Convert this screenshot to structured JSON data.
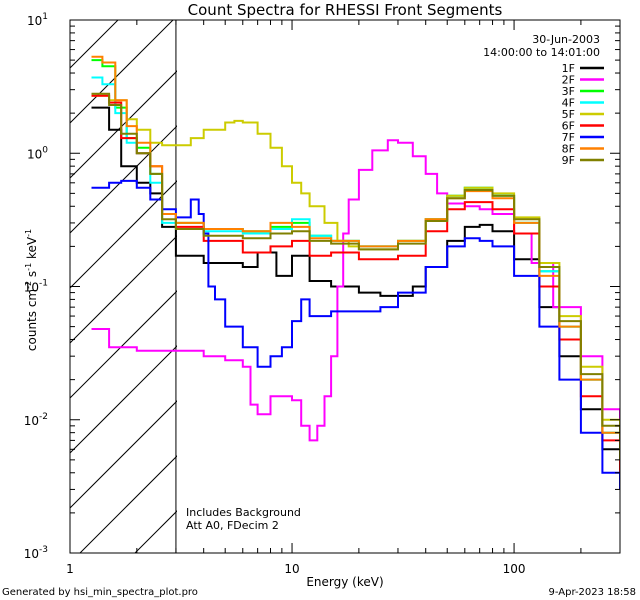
{
  "chart_data": {
    "type": "line",
    "title": "Count Spectra for RHESSI Front Segments",
    "xlabel": "Energy (keV)",
    "ylabel": "counts cm",
    "ylabel_sup1": "-2",
    "ylabel_mid": " s",
    "ylabel_sup2": "-1",
    "ylabel_end": " keV",
    "ylabel_sup3": "-1",
    "xscale": "log",
    "yscale": "log",
    "xlim": [
      1,
      300
    ],
    "ylim": [
      0.001,
      10
    ],
    "xticks": [
      {
        "v": 1,
        "label": "1"
      },
      {
        "v": 10,
        "label": "10"
      },
      {
        "v": 100,
        "label": "100"
      }
    ],
    "yticks": [
      {
        "v": 0.001,
        "base": "10",
        "exp": "-3"
      },
      {
        "v": 0.01,
        "base": "10",
        "exp": "-2"
      },
      {
        "v": 0.1,
        "base": "10",
        "exp": "-1"
      },
      {
        "v": 1,
        "base": "10",
        "exp": "0"
      },
      {
        "v": 10,
        "base": "10",
        "exp": "1"
      }
    ],
    "date": "30-Jun-2003",
    "time_range": "14:00:00 to 14:01:00",
    "excluded_region_max_kev": 3,
    "annotations": [
      "Includes Background",
      "Att A0, FDecim 2"
    ],
    "footer_left": "Generated by hsi_min_spectra_plot.pro",
    "footer_right": "9-Apr-2023 18:58",
    "series": [
      {
        "name": "1F",
        "color": "#000000",
        "points": [
          [
            1.25,
            2.2
          ],
          [
            1.5,
            1.5
          ],
          [
            1.7,
            0.8
          ],
          [
            2.0,
            0.6
          ],
          [
            2.3,
            0.5
          ],
          [
            2.6,
            0.28
          ],
          [
            3.0,
            0.17
          ],
          [
            4.0,
            0.15
          ],
          [
            6.0,
            0.14
          ],
          [
            7.0,
            0.18
          ],
          [
            8.5,
            0.12
          ],
          [
            10,
            0.17
          ],
          [
            12,
            0.11
          ],
          [
            15,
            0.1
          ],
          [
            20,
            0.09
          ],
          [
            25,
            0.085
          ],
          [
            30,
            0.085
          ],
          [
            35,
            0.1
          ],
          [
            40,
            0.14
          ],
          [
            50,
            0.22
          ],
          [
            60,
            0.28
          ],
          [
            70,
            0.29
          ],
          [
            80,
            0.26
          ],
          [
            100,
            0.16
          ],
          [
            130,
            0.07
          ],
          [
            160,
            0.03
          ],
          [
            200,
            0.012
          ],
          [
            250,
            0.006
          ],
          [
            300,
            0.004
          ]
        ]
      },
      {
        "name": "2F",
        "color": "#ff00ff",
        "points": [
          [
            1.25,
            0.048
          ],
          [
            1.5,
            0.035
          ],
          [
            2.0,
            0.033
          ],
          [
            3.0,
            0.033
          ],
          [
            4.0,
            0.03
          ],
          [
            5.0,
            0.028
          ],
          [
            6.0,
            0.025
          ],
          [
            6.5,
            0.013
          ],
          [
            7.0,
            0.011
          ],
          [
            8.0,
            0.015
          ],
          [
            10,
            0.014
          ],
          [
            11,
            0.009
          ],
          [
            12,
            0.007
          ],
          [
            13,
            0.009
          ],
          [
            14,
            0.015
          ],
          [
            15,
            0.03
          ],
          [
            16,
            0.1
          ],
          [
            17,
            0.25
          ],
          [
            18,
            0.45
          ],
          [
            20,
            0.75
          ],
          [
            23,
            1.05
          ],
          [
            27,
            1.25
          ],
          [
            30,
            1.2
          ],
          [
            35,
            0.95
          ],
          [
            40,
            0.7
          ],
          [
            45,
            0.5
          ],
          [
            50,
            0.42
          ],
          [
            60,
            0.4
          ],
          [
            70,
            0.38
          ],
          [
            80,
            0.35
          ],
          [
            100,
            0.25
          ],
          [
            120,
            0.15
          ],
          [
            150,
            0.07
          ],
          [
            200,
            0.03
          ],
          [
            250,
            0.012
          ],
          [
            300,
            0.005
          ]
        ]
      },
      {
        "name": "3F",
        "color": "#00ff00",
        "points": [
          [
            1.25,
            5.0
          ],
          [
            1.4,
            4.5
          ],
          [
            1.6,
            2.2
          ],
          [
            1.8,
            1.3
          ],
          [
            2.0,
            1.1
          ],
          [
            2.3,
            0.7
          ],
          [
            2.6,
            0.35
          ],
          [
            3.0,
            0.3
          ],
          [
            4.0,
            0.27
          ],
          [
            6.0,
            0.26
          ],
          [
            8.0,
            0.28
          ],
          [
            10,
            0.3
          ],
          [
            12,
            0.24
          ],
          [
            15,
            0.22
          ],
          [
            20,
            0.2
          ],
          [
            30,
            0.22
          ],
          [
            40,
            0.32
          ],
          [
            50,
            0.48
          ],
          [
            60,
            0.55
          ],
          [
            70,
            0.55
          ],
          [
            80,
            0.48
          ],
          [
            100,
            0.3
          ],
          [
            130,
            0.13
          ],
          [
            160,
            0.05
          ],
          [
            200,
            0.02
          ],
          [
            250,
            0.008
          ],
          [
            300,
            0.005
          ]
        ]
      },
      {
        "name": "4F",
        "color": "#00ffff",
        "points": [
          [
            1.25,
            3.7
          ],
          [
            1.4,
            3.3
          ],
          [
            1.6,
            2.0
          ],
          [
            1.8,
            1.2
          ],
          [
            2.0,
            1.0
          ],
          [
            2.3,
            0.6
          ],
          [
            2.6,
            0.3
          ],
          [
            3.0,
            0.27
          ],
          [
            4.0,
            0.26
          ],
          [
            6.0,
            0.25
          ],
          [
            8.0,
            0.27
          ],
          [
            10,
            0.32
          ],
          [
            12,
            0.24
          ],
          [
            15,
            0.22
          ],
          [
            20,
            0.2
          ],
          [
            30,
            0.22
          ],
          [
            40,
            0.32
          ],
          [
            50,
            0.48
          ],
          [
            60,
            0.55
          ],
          [
            70,
            0.55
          ],
          [
            80,
            0.48
          ],
          [
            100,
            0.3
          ],
          [
            130,
            0.13
          ],
          [
            160,
            0.05
          ],
          [
            200,
            0.02
          ],
          [
            250,
            0.008
          ],
          [
            300,
            0.005
          ]
        ]
      },
      {
        "name": "5F",
        "color": "#cccc00",
        "points": [
          [
            1.25,
            2.7
          ],
          [
            1.5,
            2.5
          ],
          [
            1.8,
            1.8
          ],
          [
            2.0,
            1.5
          ],
          [
            2.3,
            1.2
          ],
          [
            2.6,
            1.15
          ],
          [
            3.0,
            1.15
          ],
          [
            3.5,
            1.3
          ],
          [
            4.0,
            1.5
          ],
          [
            5.0,
            1.7
          ],
          [
            5.5,
            1.75
          ],
          [
            6.0,
            1.7
          ],
          [
            7.0,
            1.4
          ],
          [
            8.0,
            1.1
          ],
          [
            9.0,
            0.8
          ],
          [
            10,
            0.6
          ],
          [
            11,
            0.5
          ],
          [
            12,
            0.4
          ],
          [
            14,
            0.3
          ],
          [
            16,
            0.22
          ],
          [
            18,
            0.2
          ],
          [
            20,
            0.19
          ],
          [
            30,
            0.22
          ],
          [
            40,
            0.32
          ],
          [
            50,
            0.48
          ],
          [
            60,
            0.55
          ],
          [
            70,
            0.55
          ],
          [
            80,
            0.5
          ],
          [
            100,
            0.33
          ],
          [
            130,
            0.15
          ],
          [
            160,
            0.06
          ],
          [
            200,
            0.025
          ],
          [
            250,
            0.01
          ],
          [
            300,
            0.006
          ]
        ]
      },
      {
        "name": "6F",
        "color": "#ff0000",
        "points": [
          [
            1.25,
            2.7
          ],
          [
            1.5,
            2.4
          ],
          [
            1.7,
            1.3
          ],
          [
            2.0,
            1.0
          ],
          [
            2.3,
            0.8
          ],
          [
            2.6,
            0.35
          ],
          [
            3.0,
            0.28
          ],
          [
            4.0,
            0.22
          ],
          [
            6.0,
            0.18
          ],
          [
            8.0,
            0.2
          ],
          [
            10,
            0.22
          ],
          [
            12,
            0.17
          ],
          [
            15,
            0.18
          ],
          [
            20,
            0.16
          ],
          [
            30,
            0.17
          ],
          [
            40,
            0.26
          ],
          [
            50,
            0.38
          ],
          [
            60,
            0.43
          ],
          [
            70,
            0.43
          ],
          [
            80,
            0.38
          ],
          [
            100,
            0.25
          ],
          [
            130,
            0.1
          ],
          [
            160,
            0.04
          ],
          [
            200,
            0.015
          ],
          [
            250,
            0.007
          ],
          [
            300,
            0.004
          ]
        ]
      },
      {
        "name": "7F",
        "color": "#0000ff",
        "points": [
          [
            1.25,
            0.55
          ],
          [
            1.5,
            0.6
          ],
          [
            1.7,
            0.62
          ],
          [
            2.0,
            0.55
          ],
          [
            2.3,
            0.45
          ],
          [
            2.6,
            0.38
          ],
          [
            3.0,
            0.33
          ],
          [
            3.5,
            0.45
          ],
          [
            3.8,
            0.35
          ],
          [
            4.0,
            0.25
          ],
          [
            4.2,
            0.1
          ],
          [
            4.5,
            0.08
          ],
          [
            5.0,
            0.05
          ],
          [
            6.0,
            0.035
          ],
          [
            7.0,
            0.025
          ],
          [
            8.0,
            0.03
          ],
          [
            9.0,
            0.035
          ],
          [
            10,
            0.055
          ],
          [
            11,
            0.08
          ],
          [
            12,
            0.06
          ],
          [
            15,
            0.065
          ],
          [
            20,
            0.065
          ],
          [
            25,
            0.07
          ],
          [
            30,
            0.09
          ],
          [
            40,
            0.14
          ],
          [
            50,
            0.2
          ],
          [
            60,
            0.23
          ],
          [
            70,
            0.22
          ],
          [
            80,
            0.2
          ],
          [
            100,
            0.12
          ],
          [
            130,
            0.05
          ],
          [
            160,
            0.02
          ],
          [
            200,
            0.008
          ],
          [
            250,
            0.004
          ],
          [
            300,
            0.003
          ]
        ]
      },
      {
        "name": "8F",
        "color": "#ff8000",
        "points": [
          [
            1.25,
            5.3
          ],
          [
            1.4,
            4.8
          ],
          [
            1.6,
            2.5
          ],
          [
            1.8,
            1.6
          ],
          [
            2.0,
            1.2
          ],
          [
            2.3,
            0.8
          ],
          [
            2.6,
            0.35
          ],
          [
            3.0,
            0.3
          ],
          [
            4.0,
            0.27
          ],
          [
            6.0,
            0.26
          ],
          [
            8.0,
            0.3
          ],
          [
            10,
            0.28
          ],
          [
            12,
            0.23
          ],
          [
            15,
            0.22
          ],
          [
            20,
            0.2
          ],
          [
            30,
            0.22
          ],
          [
            40,
            0.32
          ],
          [
            50,
            0.46
          ],
          [
            60,
            0.52
          ],
          [
            70,
            0.52
          ],
          [
            80,
            0.46
          ],
          [
            100,
            0.3
          ],
          [
            130,
            0.12
          ],
          [
            160,
            0.05
          ],
          [
            200,
            0.02
          ],
          [
            250,
            0.008
          ],
          [
            300,
            0.005
          ]
        ]
      },
      {
        "name": "9F",
        "color": "#808000",
        "points": [
          [
            1.25,
            2.8
          ],
          [
            1.5,
            2.3
          ],
          [
            1.7,
            1.4
          ],
          [
            2.0,
            1.0
          ],
          [
            2.3,
            0.7
          ],
          [
            2.6,
            0.32
          ],
          [
            3.0,
            0.27
          ],
          [
            4.0,
            0.24
          ],
          [
            6.0,
            0.23
          ],
          [
            8.0,
            0.25
          ],
          [
            10,
            0.26
          ],
          [
            12,
            0.22
          ],
          [
            15,
            0.21
          ],
          [
            20,
            0.19
          ],
          [
            30,
            0.21
          ],
          [
            40,
            0.31
          ],
          [
            50,
            0.46
          ],
          [
            60,
            0.53
          ],
          [
            70,
            0.53
          ],
          [
            80,
            0.48
          ],
          [
            100,
            0.32
          ],
          [
            130,
            0.14
          ],
          [
            160,
            0.055
          ],
          [
            200,
            0.022
          ],
          [
            250,
            0.009
          ],
          [
            300,
            0.005
          ]
        ]
      }
    ]
  }
}
